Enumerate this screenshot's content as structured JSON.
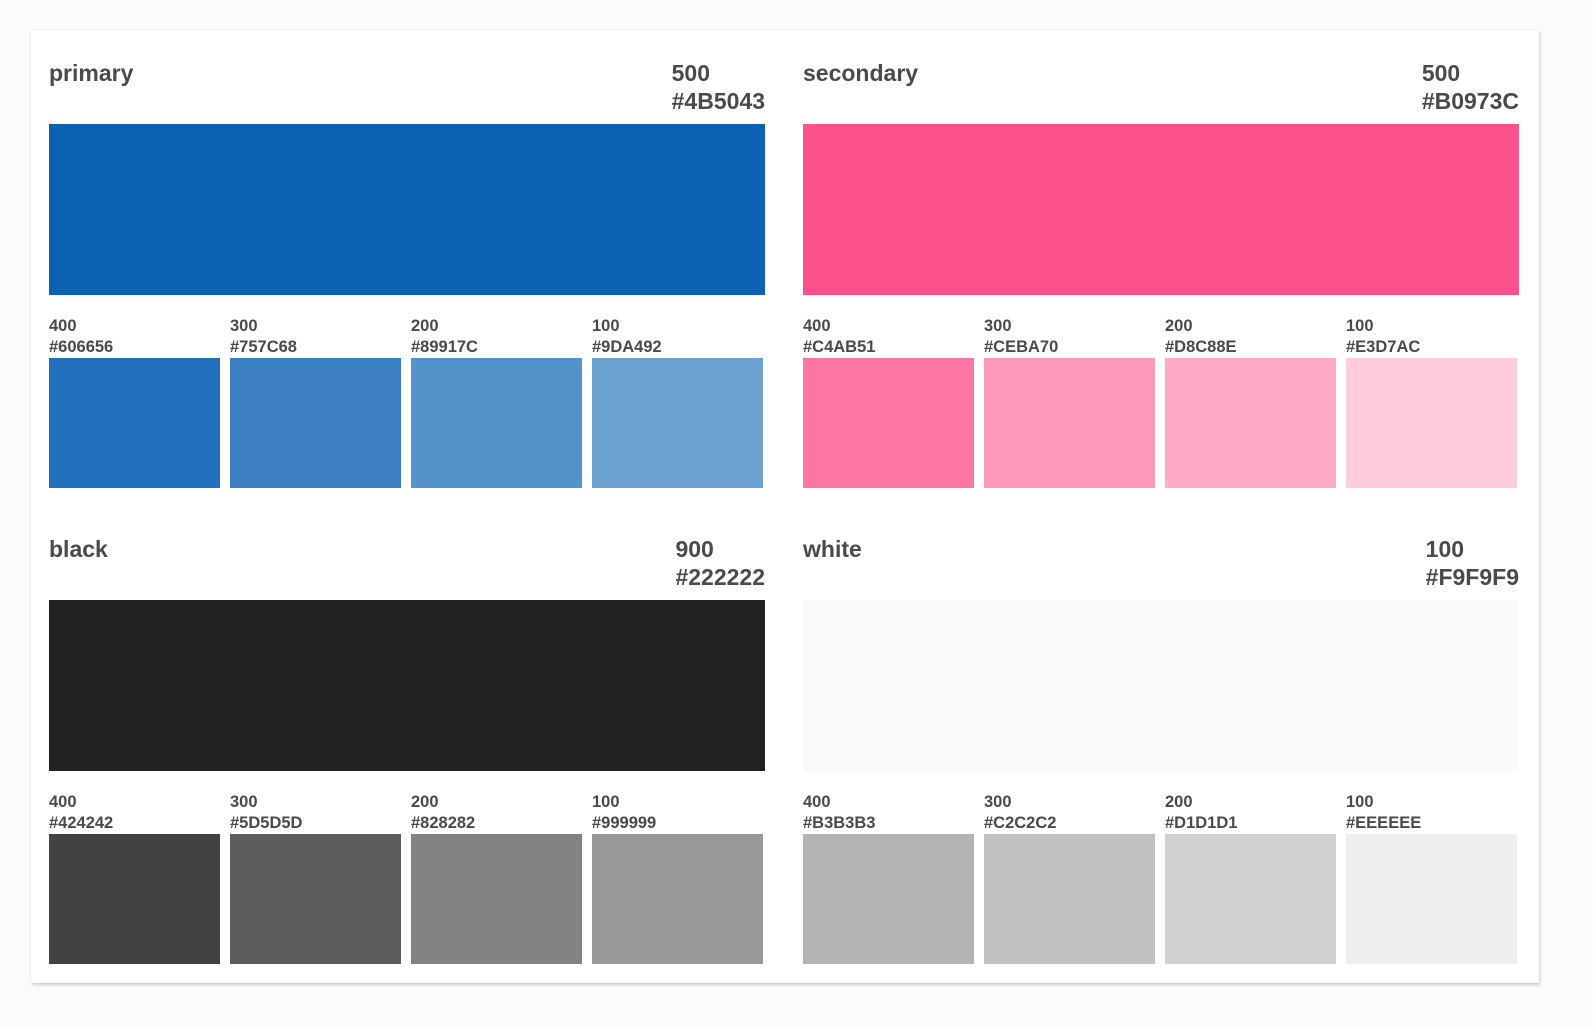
{
  "palettes": [
    {
      "name": "primary",
      "weight": "500",
      "hex": "#4B5043",
      "color": "#0c61b0",
      "shades": [
        {
          "weight": "400",
          "hex": "#606656",
          "color": "#2270bb"
        },
        {
          "weight": "300",
          "hex": "#757C68",
          "color": "#3b7fc0"
        },
        {
          "weight": "200",
          "hex": "#89917C",
          "color": "#5291ca"
        },
        {
          "weight": "100",
          "hex": "#9DA492",
          "color": "#6ca0cf"
        }
      ]
    },
    {
      "name": "secondary",
      "weight": "500",
      "hex": "#B0973C",
      "color": "#fc518c",
      "shades": [
        {
          "weight": "400",
          "hex": "#C4AB51",
          "color": "#fd76a3"
        },
        {
          "weight": "300",
          "hex": "#CEBA70",
          "color": "#fd98bb"
        },
        {
          "weight": "200",
          "hex": "#D8C88E",
          "color": "#fea9c7"
        },
        {
          "weight": "100",
          "hex": "#E3D7AC",
          "color": "#feccdd"
        }
      ]
    },
    {
      "name": "black",
      "weight": "900",
      "hex": "#222222",
      "color": "#222222",
      "shades": [
        {
          "weight": "400",
          "hex": "#424242",
          "color": "#424242"
        },
        {
          "weight": "300",
          "hex": "#5D5D5D",
          "color": "#5d5d5d"
        },
        {
          "weight": "200",
          "hex": "#828282",
          "color": "#828282"
        },
        {
          "weight": "100",
          "hex": "#999999",
          "color": "#999999"
        }
      ]
    },
    {
      "name": "white",
      "weight": "100",
      "hex": "#F9F9F9",
      "color": "#f9f9f9",
      "shades": [
        {
          "weight": "400",
          "hex": "#B3B3B3",
          "color": "#b3b3b3"
        },
        {
          "weight": "300",
          "hex": "#C2C2C2",
          "color": "#c2c2c2"
        },
        {
          "weight": "200",
          "hex": "#D1D1D1",
          "color": "#d1d1d1"
        },
        {
          "weight": "100",
          "hex": "#EEEEEE",
          "color": "#eeeeee"
        }
      ]
    }
  ]
}
